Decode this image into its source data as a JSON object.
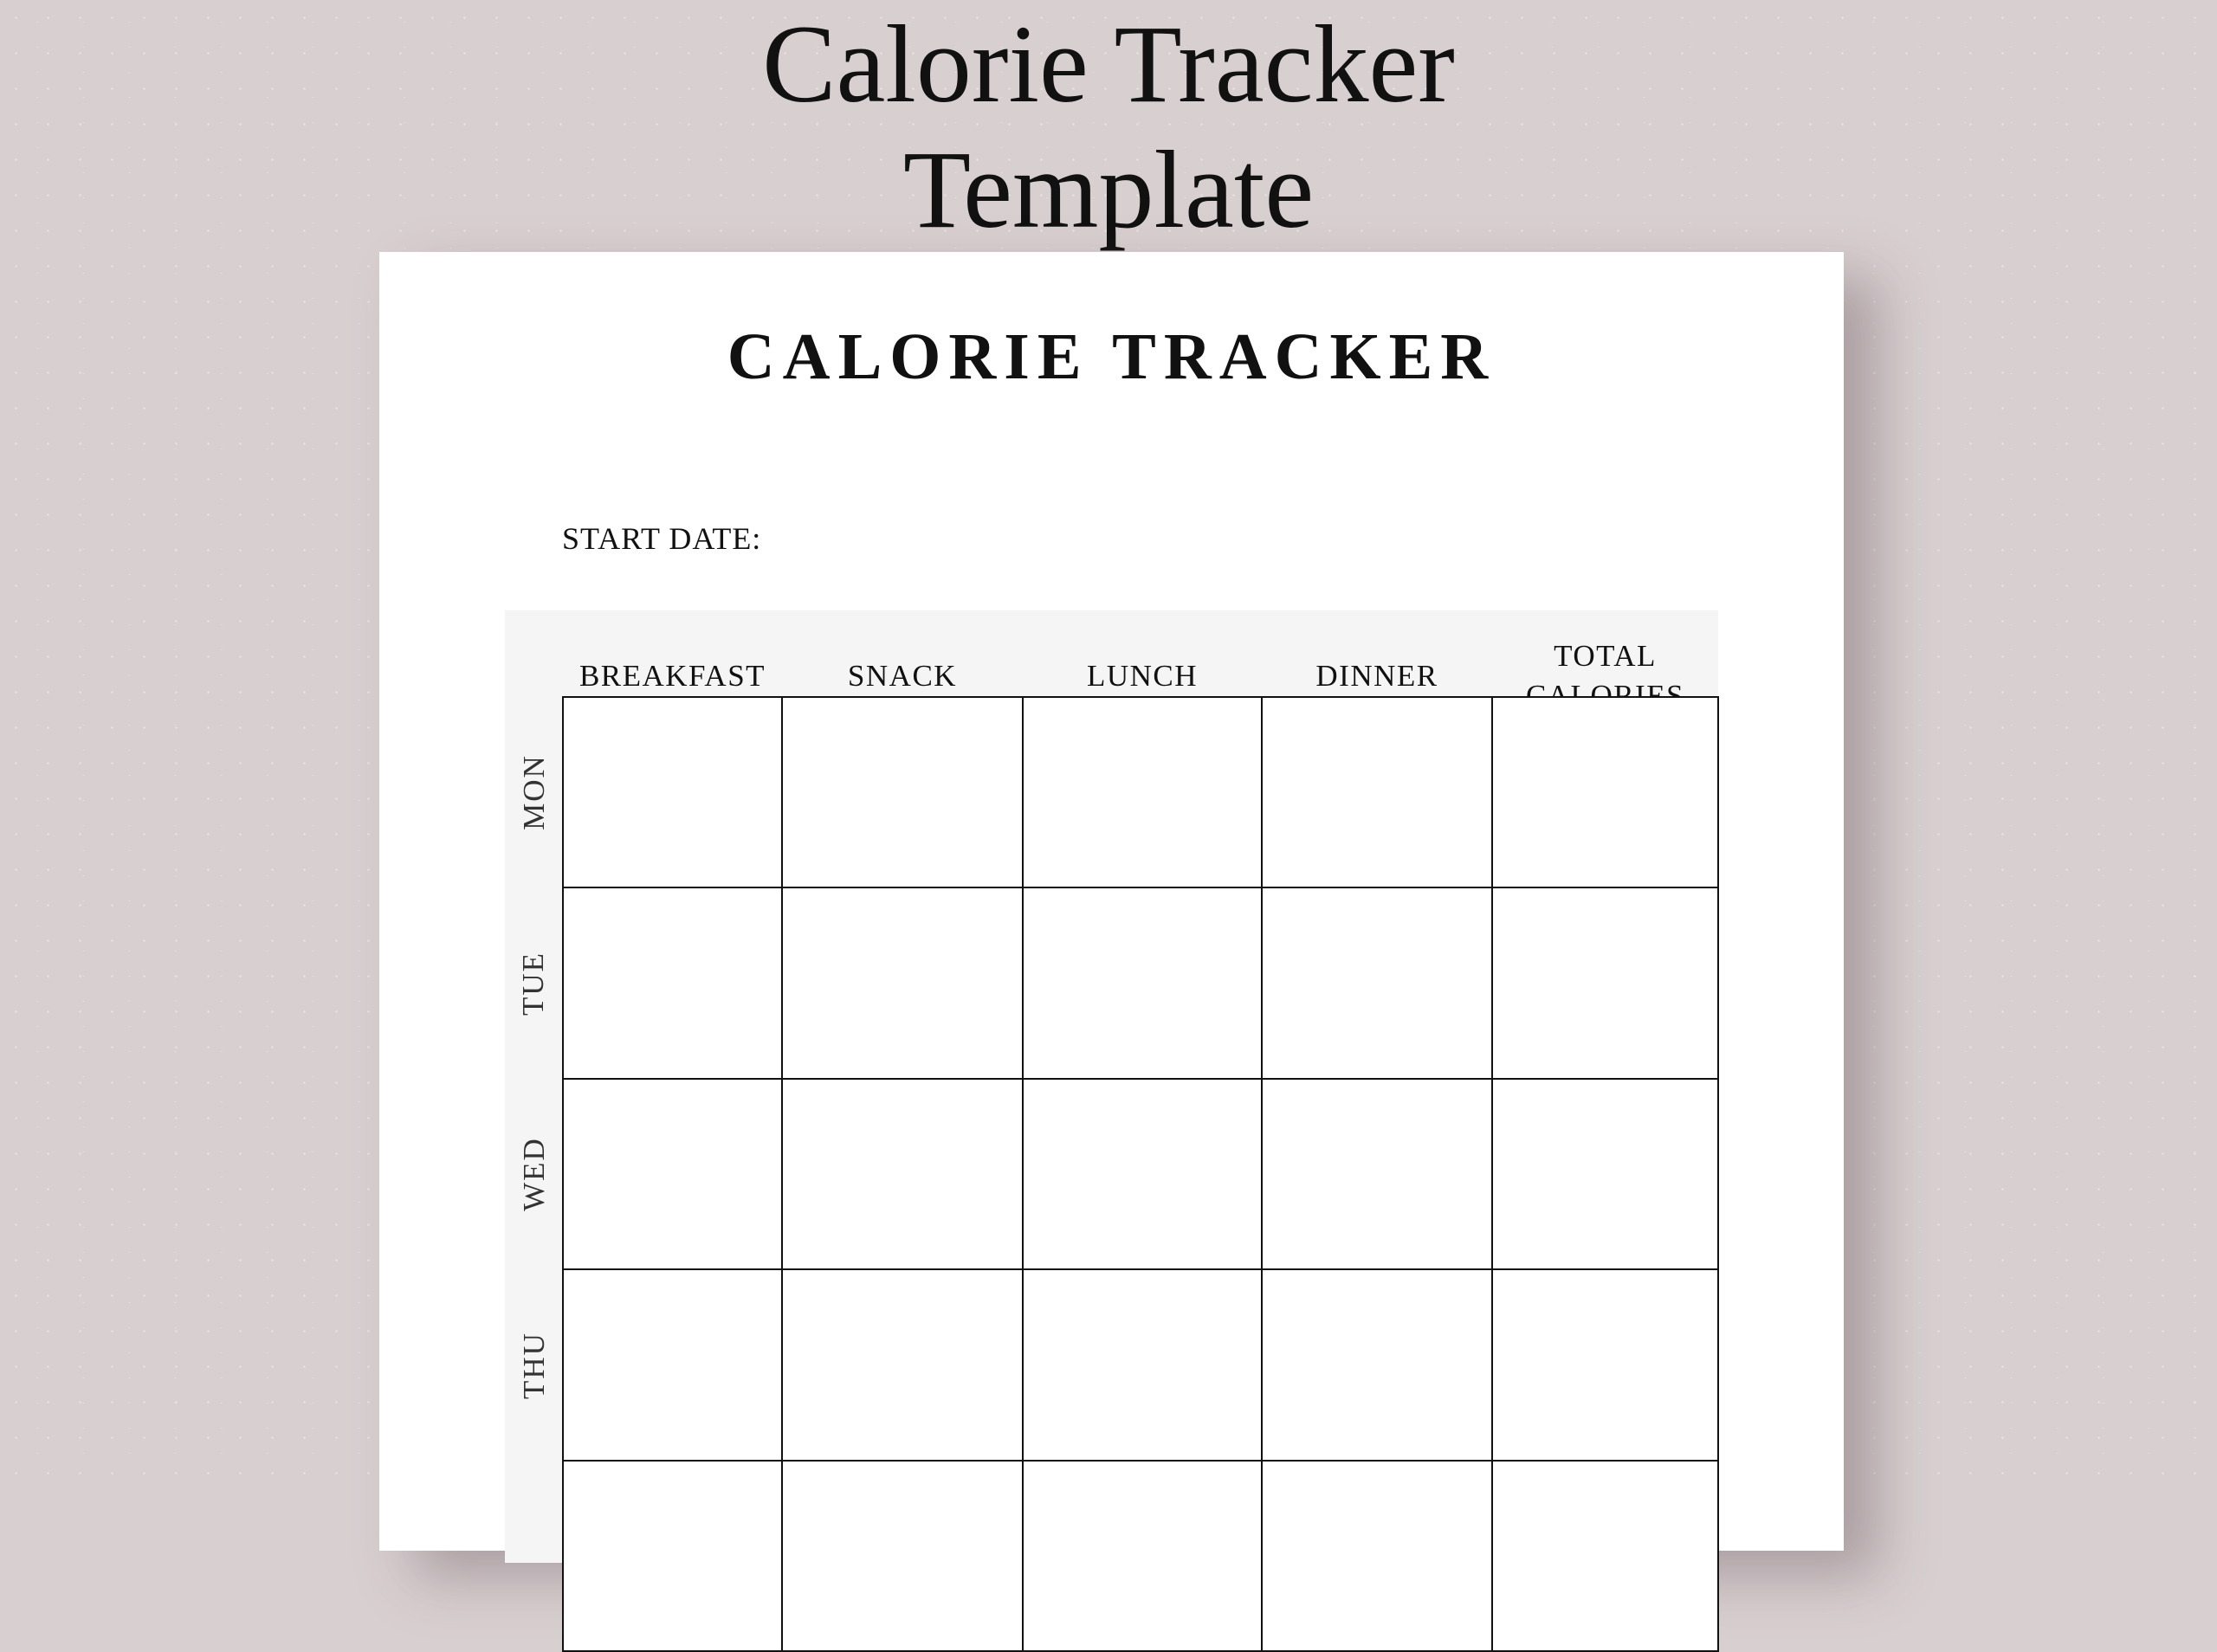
{
  "headline": {
    "line1": "Calorie Tracker",
    "line2": "Template"
  },
  "document": {
    "title": "CALORIE TRACKER",
    "start_date_label": "START DATE:",
    "columns": [
      "BREAKFAST",
      "SNACK",
      "LUNCH",
      "DINNER",
      "TOTAL CALORIES"
    ],
    "total_col": {
      "line1": "TOTAL",
      "line2": "CALORIES"
    },
    "days": [
      "MON",
      "TUE",
      "WED",
      "THU"
    ]
  },
  "colors": {
    "background": "#d8cfd1",
    "paper": "#ffffff",
    "header_band": "#f5f5f5",
    "lines": "#111111"
  }
}
